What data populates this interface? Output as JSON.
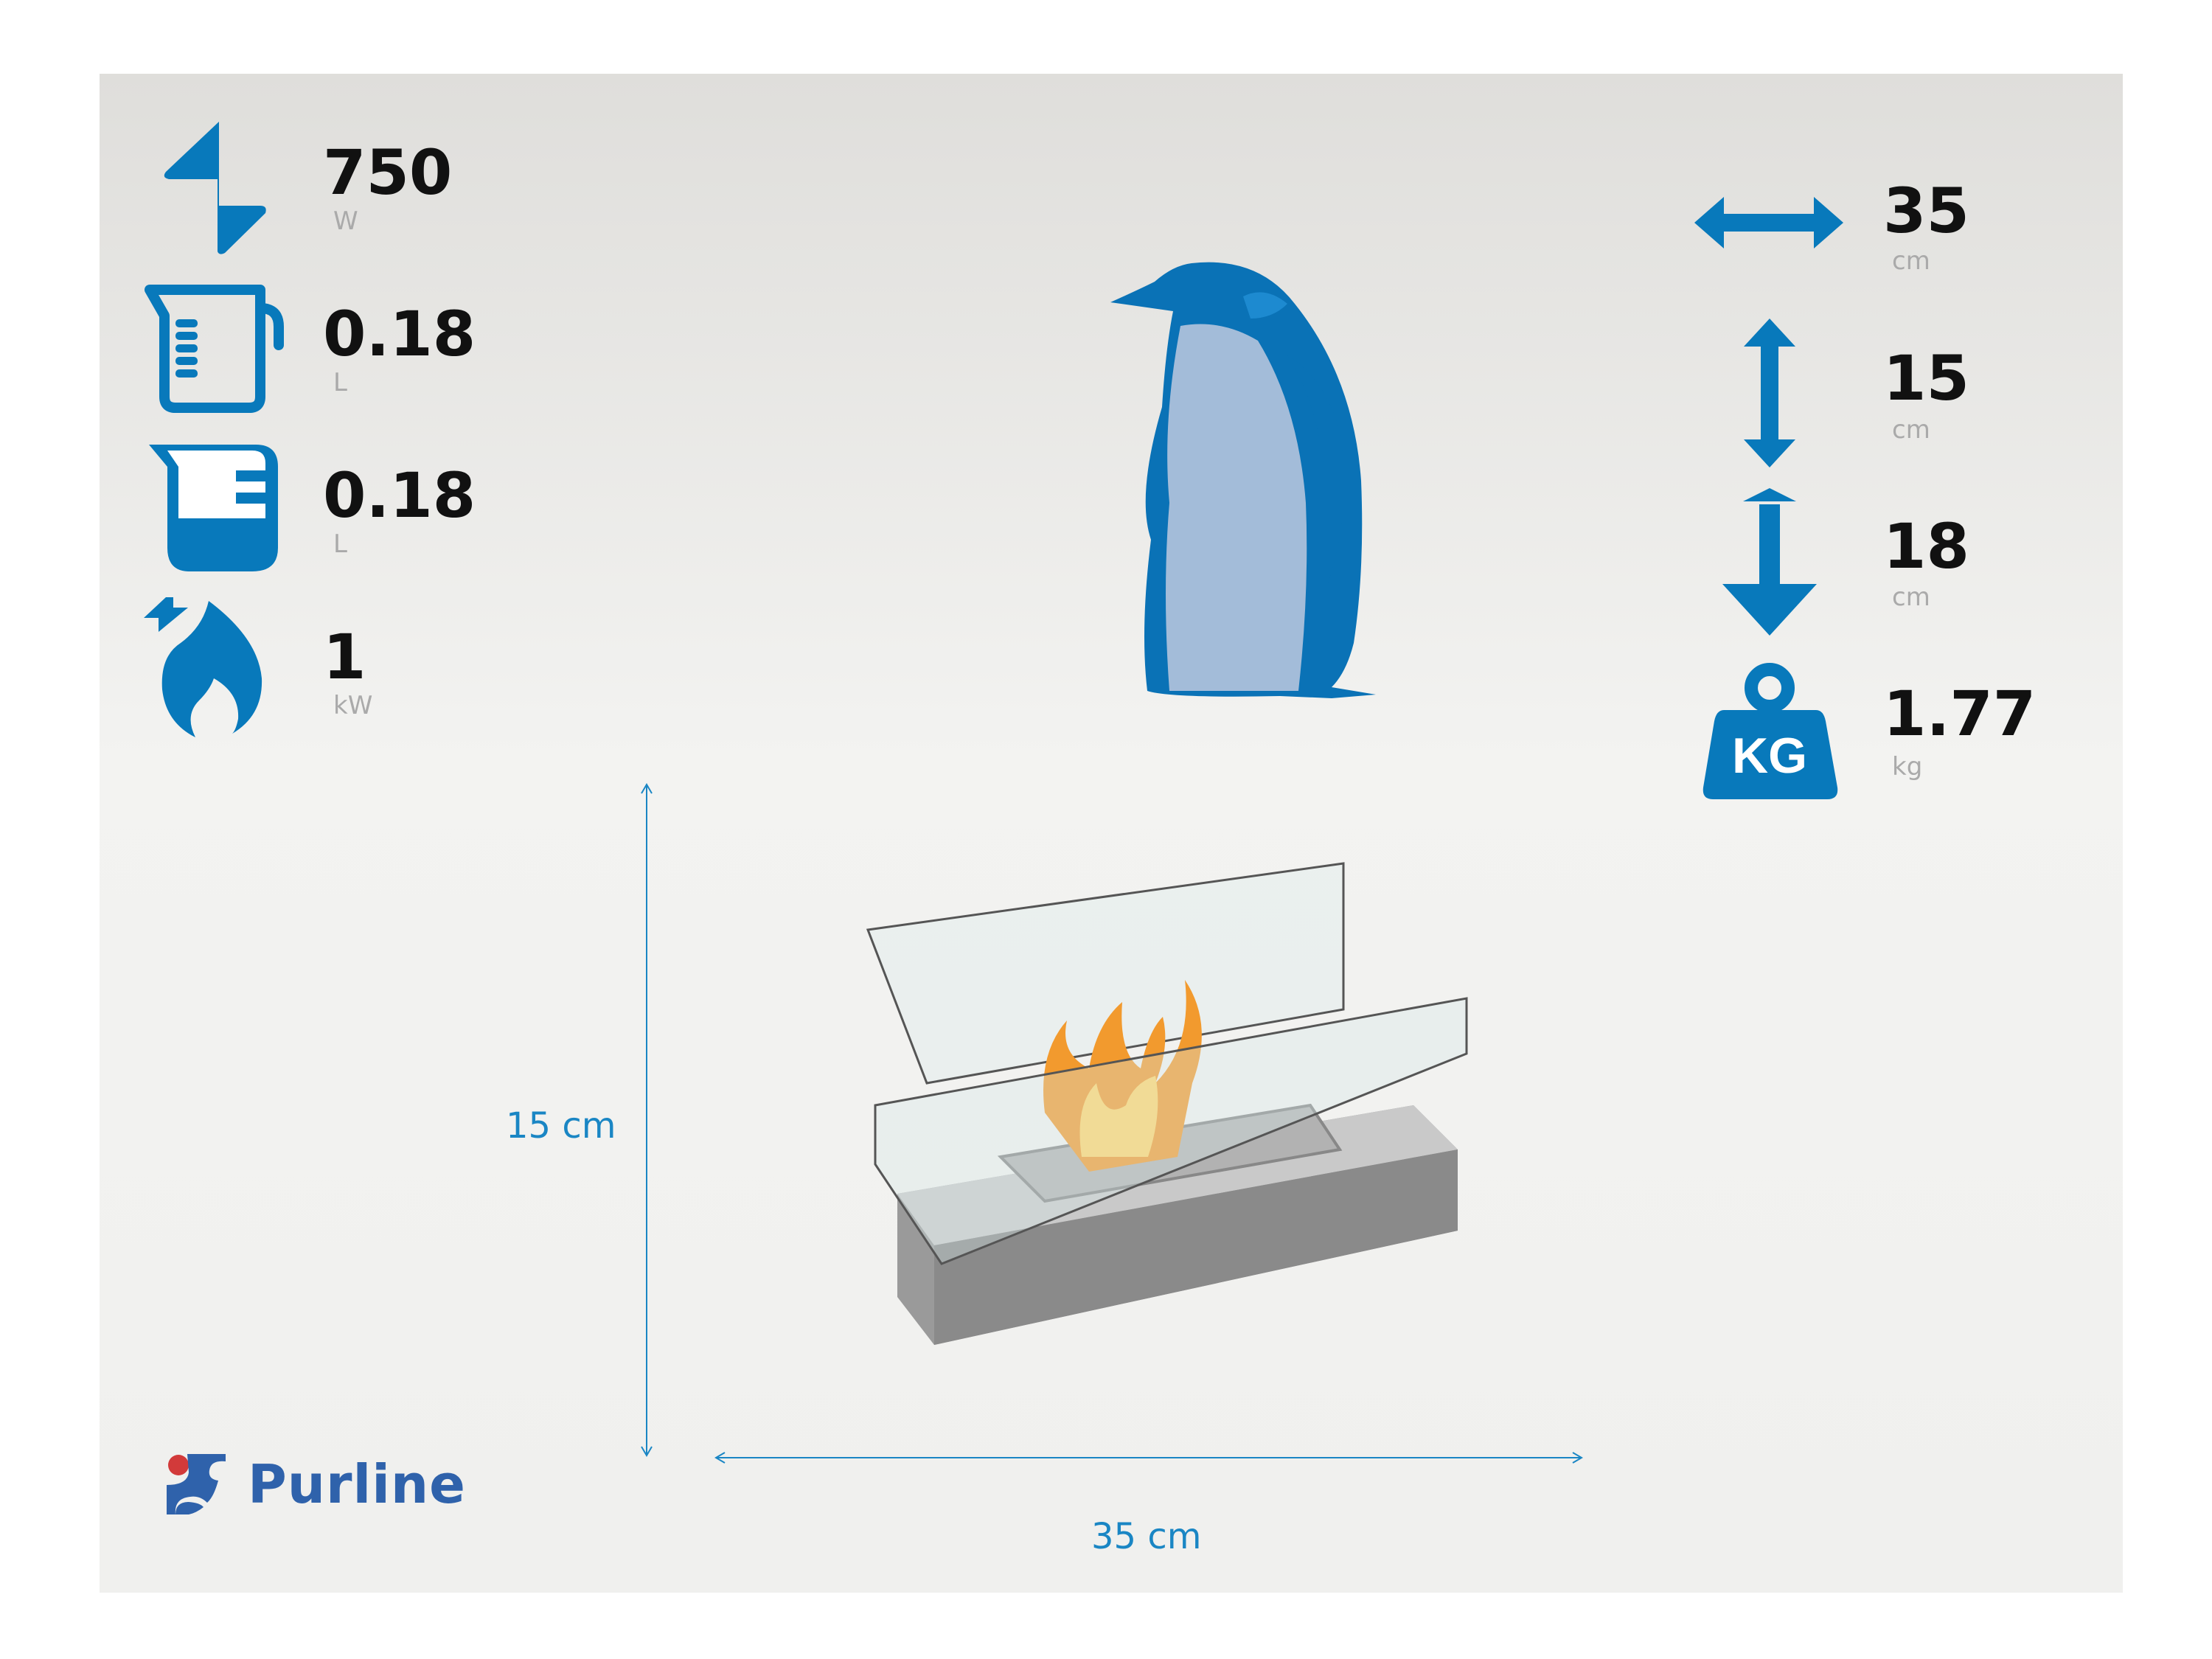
{
  "accent_color": "#0879bb",
  "specs_left": [
    {
      "icon": "lightning-icon",
      "value": "750",
      "unit": "W"
    },
    {
      "icon": "measuring-jug-icon",
      "value": "0.18",
      "unit": "L"
    },
    {
      "icon": "filled-jug-icon",
      "value": "0.18",
      "unit": "L"
    },
    {
      "icon": "flame-power-icon",
      "value": "1",
      "unit": "kW"
    }
  ],
  "specs_right": [
    {
      "icon": "width-arrow-icon",
      "value": "35",
      "unit": "cm"
    },
    {
      "icon": "height-arrow-icon",
      "value": "15",
      "unit": "cm"
    },
    {
      "icon": "depth-arrow-icon",
      "value": "18",
      "unit": "cm"
    },
    {
      "icon": "weight-icon",
      "value": "1.77",
      "unit": "kg",
      "icon_text": "KG"
    }
  ],
  "dimensions": {
    "height_label": "15 cm",
    "width_label": "35 cm"
  },
  "logo": {
    "text": "Purline",
    "brand_blue": "#2f62ab",
    "brand_red": "#d23a3a"
  }
}
